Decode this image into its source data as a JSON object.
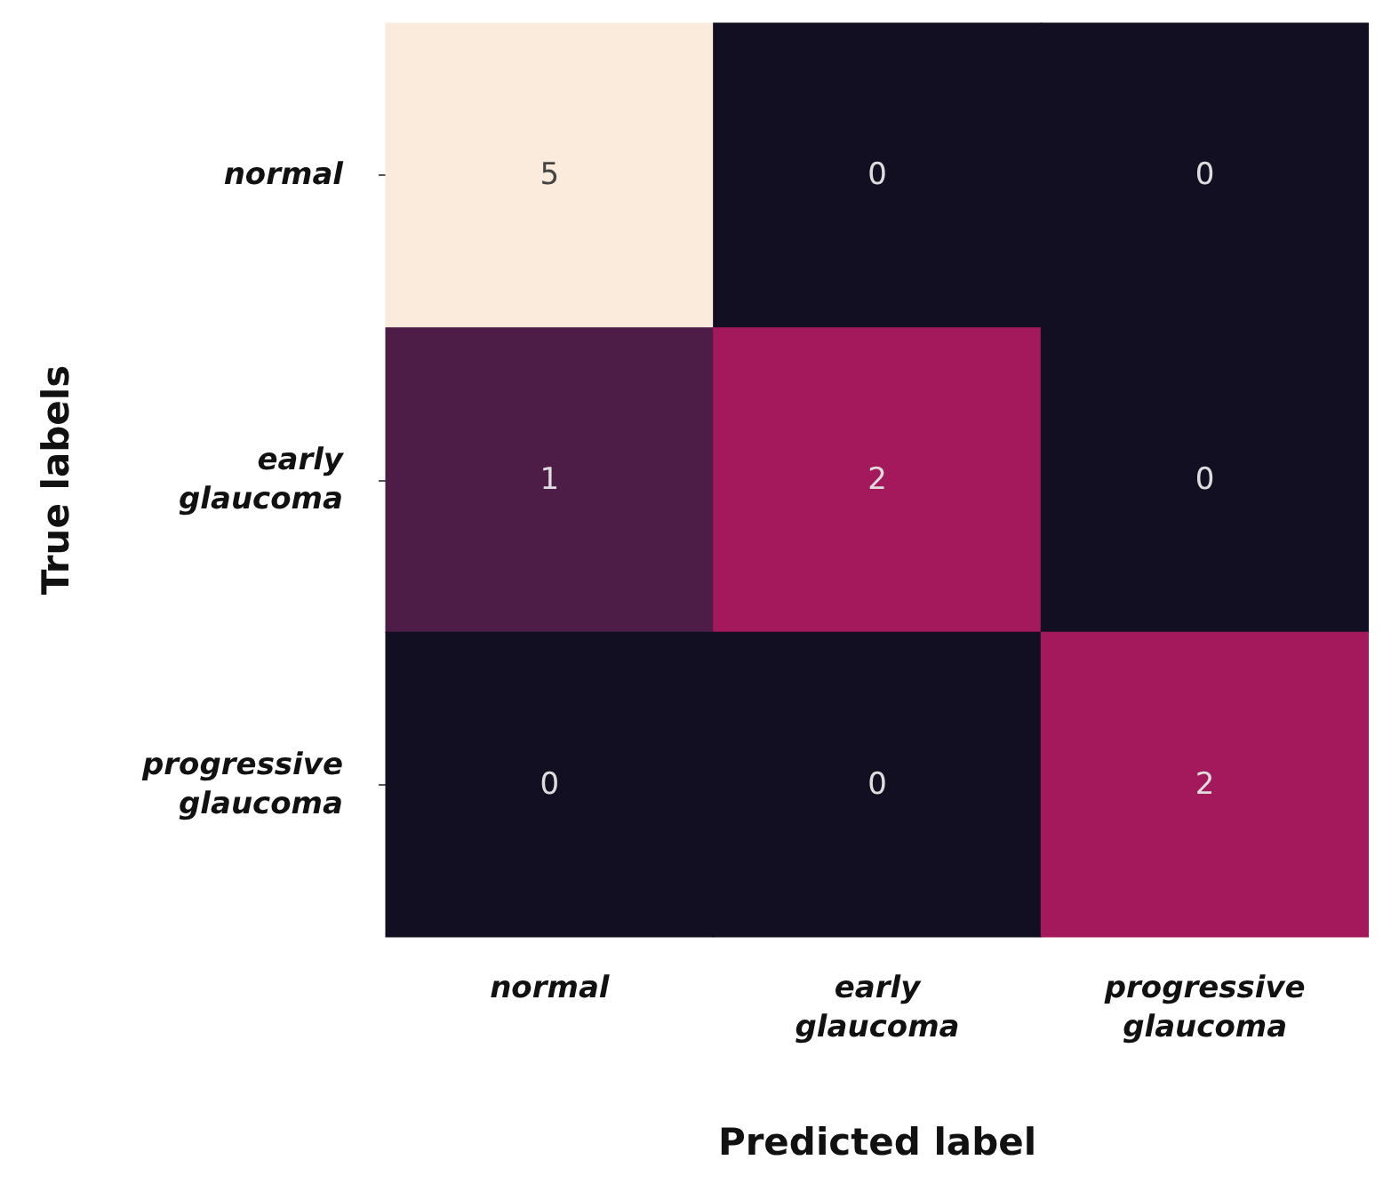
{
  "chart_data": {
    "type": "heatmap",
    "xlabel": "Predicted label",
    "ylabel": "True labels",
    "categories": [
      "normal",
      "early glaucoma",
      "progressive glaucoma"
    ],
    "y_categories": [
      "normal",
      "early glaucoma",
      "progressive glaucoma"
    ],
    "data_labels": true,
    "cells": [
      [
        5,
        0,
        0
      ],
      [
        1,
        2,
        0
      ],
      [
        0,
        0,
        2
      ]
    ]
  }
}
